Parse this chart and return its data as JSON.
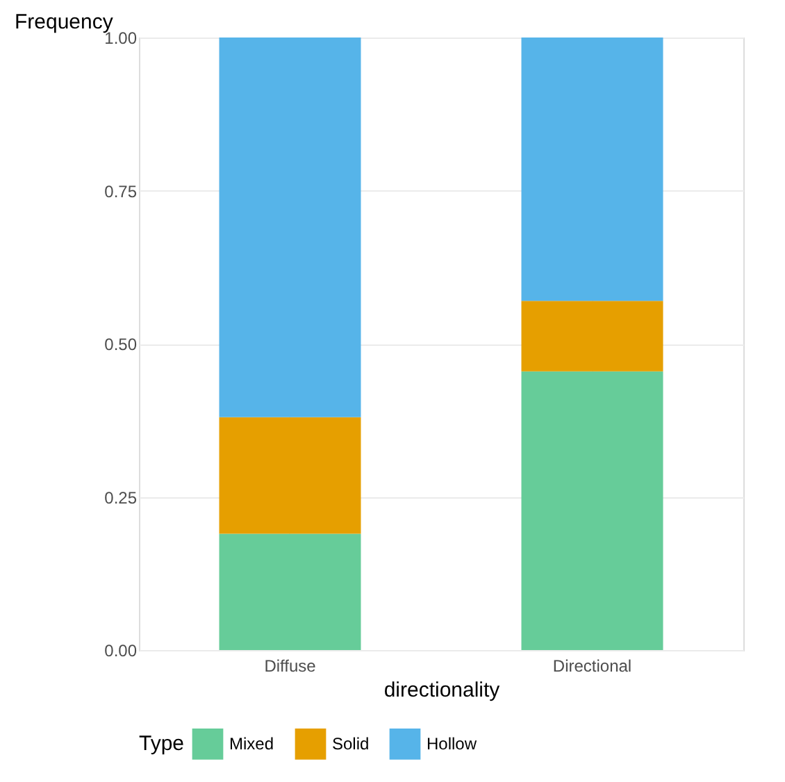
{
  "chart_data": {
    "type": "bar",
    "stacked": true,
    "xlabel": "directionality",
    "ylabel": "Frequency",
    "legend_title": "Type",
    "categories": [
      "Diffuse",
      "Directional"
    ],
    "series": [
      {
        "name": "Mixed",
        "color": "#66cc99",
        "values": [
          0.19,
          0.455
        ]
      },
      {
        "name": "Solid",
        "color": "#e69f00",
        "values": [
          0.19,
          0.115
        ]
      },
      {
        "name": "Hollow",
        "color": "#56b4e9",
        "values": [
          0.62,
          0.43
        ]
      }
    ],
    "ylim": [
      0,
      1
    ],
    "yticks": [
      {
        "value": 0,
        "label": "0.00"
      },
      {
        "value": 0.25,
        "label": "0.25"
      },
      {
        "value": 0.5,
        "label": "0.50"
      },
      {
        "value": 0.75,
        "label": "0.75"
      },
      {
        "value": 1,
        "label": "1.00"
      }
    ],
    "grid": true,
    "legend": "bottom"
  }
}
